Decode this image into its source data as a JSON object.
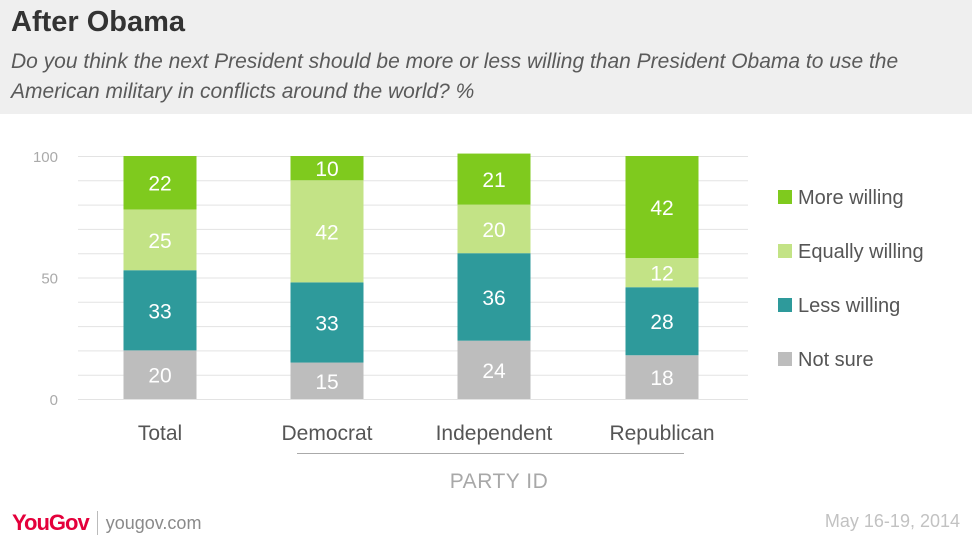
{
  "header": {
    "title": "After Obama",
    "subtitle": "Do you think the next President should be more or less willing than President Obama to use the American military in conflicts around the world? %"
  },
  "footer": {
    "logo_you": "You",
    "logo_gov": "Gov",
    "site": "yougov.com",
    "date": "May 16-19, 2014"
  },
  "chart_data": {
    "type": "bar",
    "stacked": true,
    "categories": [
      "Total",
      "Democrat",
      "Independent",
      "Republican"
    ],
    "group_label": "PARTY ID",
    "ylim": [
      0,
      100
    ],
    "yticks": [
      0,
      50,
      100
    ],
    "grid": true,
    "legend_position": "right",
    "series": [
      {
        "name": "Not sure",
        "color": "#bdbdbd",
        "values": [
          20,
          15,
          24,
          18
        ]
      },
      {
        "name": "Less willing",
        "color": "#2e9a9b",
        "values": [
          33,
          33,
          36,
          28
        ]
      },
      {
        "name": "Equally willing",
        "color": "#c3e386",
        "values": [
          25,
          42,
          20,
          12
        ]
      },
      {
        "name": "More willing",
        "color": "#7fca1e",
        "values": [
          22,
          10,
          21,
          42
        ]
      }
    ],
    "legend_order": [
      "More willing",
      "Equally willing",
      "Less willing",
      "Not sure"
    ]
  }
}
